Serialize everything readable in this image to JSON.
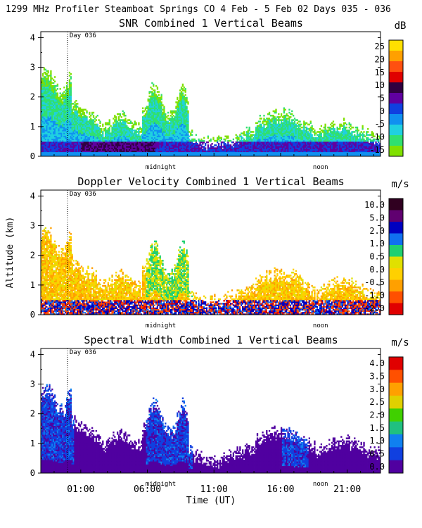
{
  "header": {
    "title": "1299 MHz Profiler  Steamboat Springs CO   4 Feb -  5 Feb 02 Days 035 - 036"
  },
  "chart_data": [
    {
      "type": "heatmap",
      "title": "SNR Combined 1 Vertical Beams",
      "units": "dB",
      "colorbar_ticks": [
        "25",
        "20",
        "15",
        "10",
        "5",
        "0",
        "-5",
        "-10",
        "-15"
      ],
      "colorbar_colors": [
        "#ffe000",
        "#ffa000",
        "#ff5010",
        "#e00000",
        "#300040",
        "#6000a0",
        "#1040e0",
        "#1090f0",
        "#20d0e0",
        "#30e070",
        "#80e000"
      ],
      "ylim": [
        0,
        4.2
      ],
      "y_ticks": [
        "0",
        "1",
        "2",
        "3",
        "4"
      ],
      "day_marker": "Day 036",
      "day_marker_x_hour": 0.0,
      "annotations": [
        {
          "label": "midnight",
          "hour": 7.0
        },
        {
          "label": "noon",
          "hour": 19.0
        }
      ]
    },
    {
      "type": "heatmap",
      "title": "Doppler Velocity Combined 1 Vertical Beams",
      "units": "m/s",
      "colorbar_ticks": [
        "10.0",
        "5.0",
        "2.0",
        "1.0",
        "0.5",
        "0.0",
        "-0.5",
        "-1.0",
        "-2.0"
      ],
      "colorbar_colors": [
        "#300020",
        "#600070",
        "#0000c0",
        "#1070f0",
        "#20d070",
        "#e0e000",
        "#ffd000",
        "#ffa000",
        "#ff5000",
        "#e00000"
      ],
      "ylim": [
        0,
        4.2
      ],
      "y_ticks": [
        "0",
        "1",
        "2",
        "3",
        "4"
      ],
      "ylabel": "Altitude (km)",
      "day_marker": "Day 036",
      "day_marker_x_hour": 0.0,
      "annotations": [
        {
          "label": "midnight",
          "hour": 7.0
        },
        {
          "label": "noon",
          "hour": 19.0
        }
      ]
    },
    {
      "type": "heatmap",
      "title": "Spectral Width Combined 1 Vertical Beams",
      "units": "m/s",
      "colorbar_ticks": [
        "4.0",
        "3.5",
        "3.0",
        "2.5",
        "2.0",
        "1.5",
        "1.0",
        "0.5",
        "0.0"
      ],
      "colorbar_colors": [
        "#e00000",
        "#ff5000",
        "#ffa000",
        "#e0d000",
        "#40d000",
        "#20c080",
        "#1080f0",
        "#1040e0",
        "#5000a0"
      ],
      "ylim": [
        0,
        4.2
      ],
      "y_ticks": [
        "0",
        "1",
        "2",
        "3",
        "4"
      ],
      "day_marker": "Day 036",
      "day_marker_x_hour": 0.0,
      "annotations": [
        {
          "label": "midnight",
          "hour": 7.0
        },
        {
          "label": "noon",
          "hour": 19.0
        }
      ],
      "x_ticks": [
        "01:00",
        "06:00",
        "11:00",
        "16:00",
        "21:00"
      ],
      "x_tick_hours": [
        1,
        6,
        11,
        16,
        21
      ],
      "xlabel": "Time (UT)"
    }
  ]
}
